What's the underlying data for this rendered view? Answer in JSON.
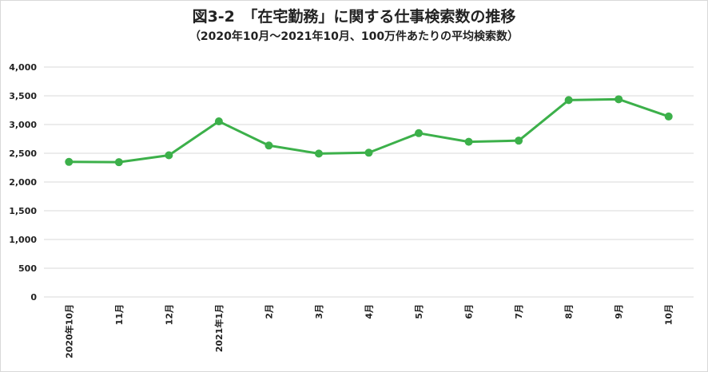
{
  "chart_data": {
    "type": "line",
    "title": "図3-2　「在宅勤務」に関する仕事検索数の推移",
    "subtitle": "（2020年10月～2021年10月、100万件あたりの平均検索数）",
    "categories": [
      "2020年10月",
      "11月",
      "12月",
      "2021年1月",
      "2月",
      "3月",
      "4月",
      "5月",
      "6月",
      "7月",
      "8月",
      "9月",
      "10月"
    ],
    "series": [
      {
        "values": [
          2350,
          2345,
          2465,
          3055,
          2635,
          2495,
          2510,
          2850,
          2700,
          2720,
          3425,
          3440,
          3140
        ]
      }
    ],
    "y_ticks": [
      "4,000",
      "3,500",
      "3,000",
      "2,500",
      "2,000",
      "1,500",
      "1,000",
      "500",
      "0"
    ],
    "ylim": [
      0,
      4000
    ],
    "xlabel": "",
    "ylabel": "",
    "grid": true,
    "legend": "none",
    "colors": {
      "line": "#3cb04a",
      "grid": "#d9d9d9",
      "text": "#222222"
    }
  }
}
